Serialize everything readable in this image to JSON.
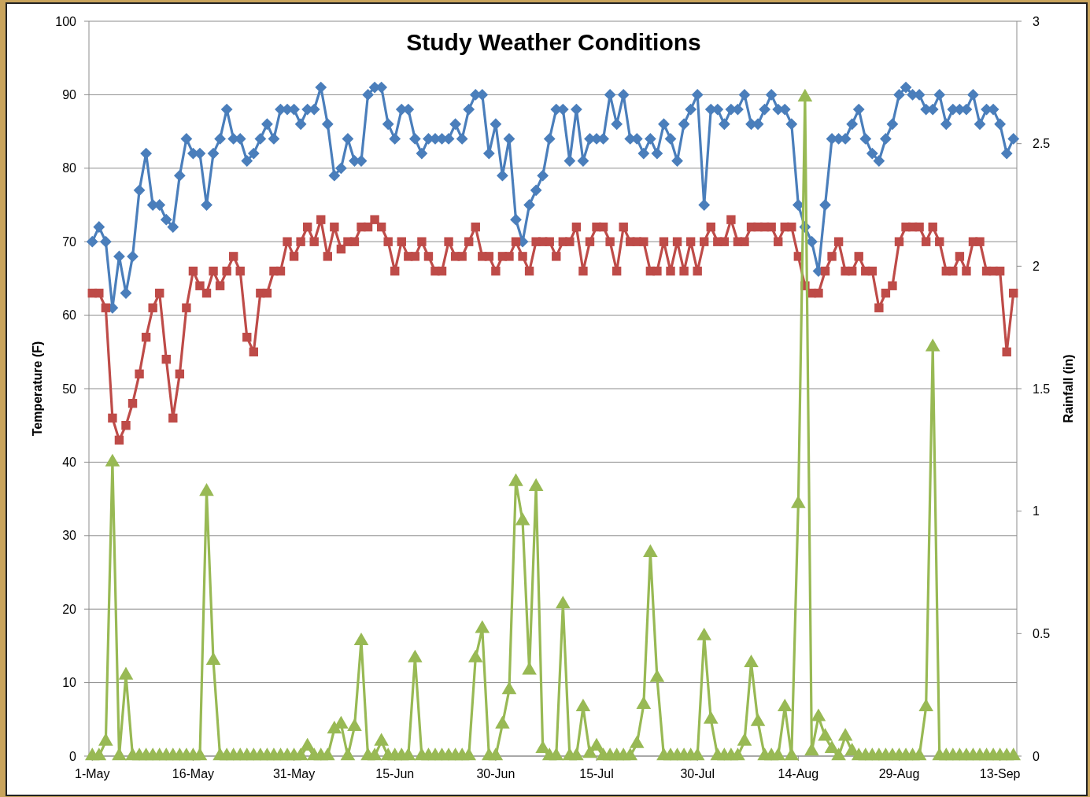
{
  "chart_data": {
    "type": "line",
    "title": "Study Weather Conditions",
    "ylabel": "Temperature (F)",
    "y2label": "Rainfall (in)",
    "categories": [
      "1-May",
      null,
      null,
      null,
      null,
      null,
      null,
      null,
      null,
      null,
      null,
      null,
      null,
      null,
      null,
      "16-May",
      null,
      null,
      null,
      null,
      null,
      null,
      null,
      null,
      null,
      null,
      null,
      null,
      null,
      null,
      "31-May",
      null,
      null,
      null,
      null,
      null,
      null,
      null,
      null,
      null,
      null,
      null,
      null,
      null,
      null,
      "15-Jun",
      null,
      null,
      null,
      null,
      null,
      null,
      null,
      null,
      null,
      null,
      null,
      null,
      null,
      null,
      "30-Jun",
      null,
      null,
      null,
      null,
      null,
      null,
      null,
      null,
      null,
      null,
      null,
      null,
      null,
      null,
      "15-Jul",
      null,
      null,
      null,
      null,
      null,
      null,
      null,
      null,
      null,
      null,
      null,
      null,
      null,
      null,
      "30-Jul",
      null,
      null,
      null,
      null,
      null,
      null,
      null,
      null,
      null,
      null,
      null,
      null,
      null,
      null,
      "14-Aug",
      null,
      null,
      null,
      null,
      null,
      null,
      null,
      null,
      null,
      null,
      null,
      null,
      null,
      null,
      "29-Aug",
      null,
      null,
      null,
      null,
      null,
      null,
      null,
      null,
      null,
      null,
      null,
      null,
      null,
      null,
      "13-Sep",
      null,
      null
    ],
    "series": [
      {
        "color": "#4a7ebb",
        "marker": "diamond",
        "values": [
          70,
          72,
          70,
          61,
          68,
          63,
          68,
          77,
          82,
          75,
          75,
          73,
          72,
          79,
          84,
          82,
          82,
          75,
          82,
          84,
          88,
          84,
          84,
          81,
          82,
          84,
          86,
          84,
          88,
          88,
          88,
          86,
          88,
          88,
          91,
          86,
          79,
          80,
          84,
          81,
          81,
          90,
          91,
          91,
          86,
          84,
          88,
          88,
          84,
          82,
          84,
          84,
          84,
          84,
          86,
          84,
          88,
          90,
          90,
          82,
          86,
          79,
          84,
          73,
          70,
          75,
          77,
          79,
          84,
          88,
          88,
          81,
          88,
          81,
          84,
          84,
          84,
          90,
          86,
          90,
          84,
          84,
          82,
          84,
          82,
          86,
          84,
          81,
          86,
          88,
          90,
          75,
          88,
          88,
          86,
          88,
          88,
          90,
          86,
          86,
          88,
          90,
          88,
          88,
          86,
          75,
          72,
          70,
          66,
          75,
          84,
          84,
          84,
          86,
          88,
          84,
          82,
          81,
          84,
          86,
          90,
          91,
          90,
          90,
          88,
          88,
          90,
          86,
          88,
          88,
          88,
          90,
          86,
          88,
          88,
          86,
          82,
          84
        ]
      },
      {
        "color": "#be4b48",
        "marker": "square",
        "values": [
          63,
          63,
          61,
          46,
          43,
          45,
          48,
          52,
          57,
          61,
          63,
          54,
          46,
          52,
          61,
          66,
          64,
          63,
          66,
          64,
          66,
          68,
          66,
          57,
          55,
          63,
          63,
          66,
          66,
          70,
          68,
          70,
          72,
          70,
          73,
          68,
          72,
          69,
          70,
          70,
          72,
          72,
          73,
          72,
          70,
          66,
          70,
          68,
          68,
          70,
          68,
          66,
          66,
          70,
          68,
          68,
          70,
          72,
          68,
          68,
          66,
          68,
          68,
          70,
          68,
          66,
          70,
          70,
          70,
          68,
          70,
          70,
          72,
          66,
          70,
          72,
          72,
          70,
          66,
          72,
          70,
          70,
          70,
          66,
          66,
          70,
          66,
          70,
          66,
          70,
          66,
          70,
          72,
          70,
          70,
          73,
          70,
          70,
          72,
          72,
          72,
          72,
          70,
          72,
          72,
          68,
          64,
          63,
          63,
          66,
          68,
          70,
          66,
          66,
          68,
          66,
          66,
          61,
          63,
          64,
          70,
          72,
          72,
          72,
          70,
          72,
          70,
          66,
          66,
          68,
          66,
          70,
          70,
          66,
          66,
          66,
          55,
          63
        ]
      },
      {
        "color": "#98b954",
        "marker": "triangle",
        "axis": "y2",
        "values": [
          0,
          0,
          0.06,
          1.2,
          0,
          0.33,
          0,
          0,
          0,
          0,
          0,
          0,
          0,
          0,
          0,
          0,
          0,
          1.08,
          0.39,
          0,
          0,
          0,
          0,
          0,
          0,
          0,
          0,
          0,
          0,
          0,
          0,
          0,
          0.04,
          0,
          0,
          0,
          0.11,
          0.13,
          0,
          0.12,
          0.47,
          0,
          0,
          0.06,
          0,
          0,
          0,
          0,
          0.4,
          0,
          0,
          0,
          0,
          0,
          0,
          0,
          0,
          0.4,
          0.52,
          0,
          0,
          0.13,
          0.27,
          1.12,
          0.96,
          0.35,
          1.1,
          0.03,
          0,
          0,
          0.62,
          0,
          0,
          0.2,
          0.01,
          0.04,
          0,
          0,
          0,
          0,
          0,
          0.05,
          0.21,
          0.83,
          0.32,
          0,
          0,
          0,
          0,
          0,
          0,
          0.49,
          0.15,
          0,
          0,
          0,
          0,
          0.06,
          0.38,
          0.14,
          0,
          0,
          0,
          0.2,
          0,
          1.03,
          2.69,
          0.02,
          0.16,
          0.08,
          0.03,
          0,
          0.08,
          0.02,
          0,
          0,
          0,
          0,
          0,
          0,
          0,
          0,
          0,
          0,
          0.2,
          1.67,
          0,
          0,
          0,
          0,
          0,
          0,
          0,
          0,
          0,
          0,
          0,
          0
        ]
      }
    ],
    "ylim": [
      0,
      100
    ],
    "yticks": [
      0,
      10,
      20,
      30,
      40,
      50,
      60,
      70,
      80,
      90,
      100
    ],
    "y2lim": [
      0,
      3
    ],
    "y2ticks": [
      0,
      0.5,
      1,
      1.5,
      2,
      2.5,
      3
    ],
    "grid": "y"
  }
}
